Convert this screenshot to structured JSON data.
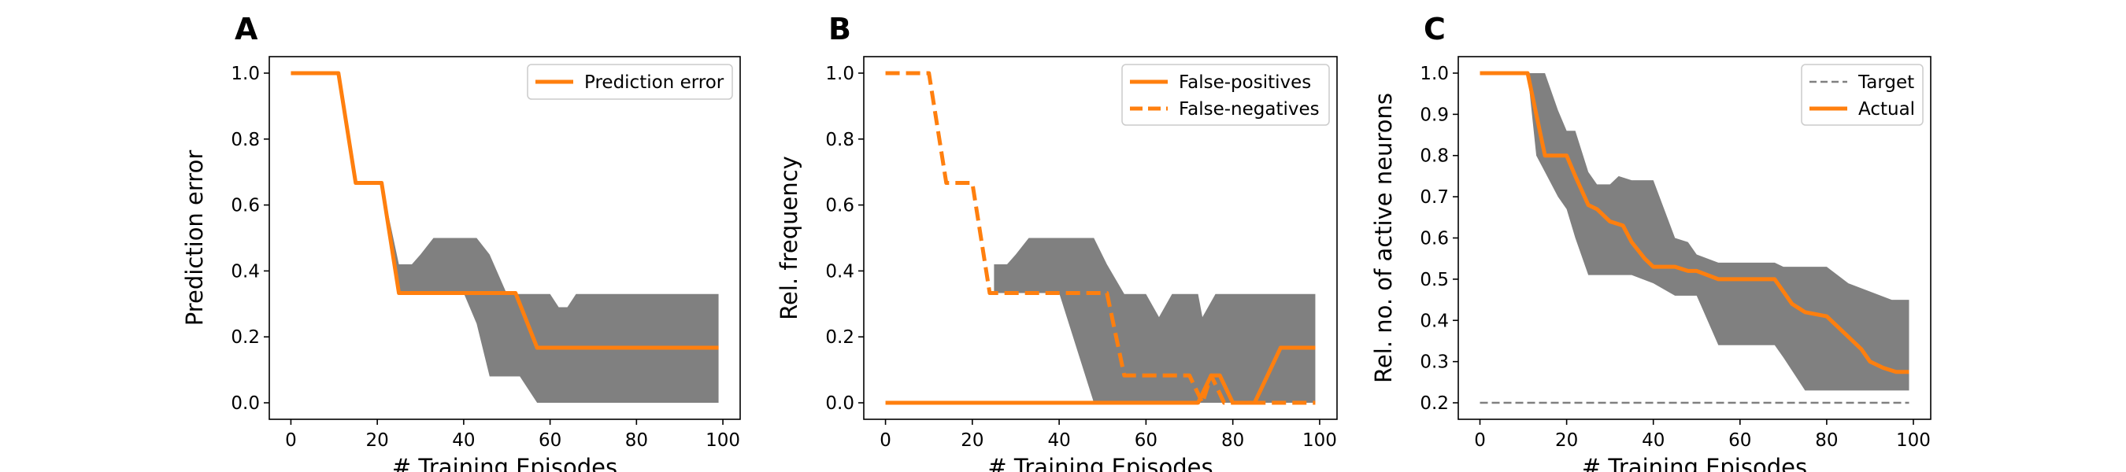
{
  "chart_data": [
    {
      "panel_label": "A",
      "type": "line",
      "xlabel": "# Training Episodes",
      "ylabel": "Prediction error",
      "xlim": [
        -5,
        104
      ],
      "ylim": [
        -0.05,
        1.05
      ],
      "xticks": [
        0,
        20,
        40,
        60,
        80,
        100
      ],
      "yticks": [
        0.0,
        0.2,
        0.4,
        0.6,
        0.8,
        1.0
      ],
      "ytick_labels": [
        "0.0",
        "0.2",
        "0.4",
        "0.6",
        "0.8",
        "1.0"
      ],
      "legend_position": "upper right",
      "bands": [
        {
          "color": "#808080",
          "x": [
            0,
            11,
            15,
            21,
            25,
            28,
            30,
            33,
            35,
            40,
            43,
            46,
            50,
            53,
            57,
            60,
            62,
            64,
            66,
            70,
            80,
            90,
            99
          ],
          "upper": [
            1.0,
            1.0,
            0.667,
            0.667,
            0.42,
            0.42,
            0.45,
            0.5,
            0.5,
            0.5,
            0.5,
            0.45,
            0.33,
            0.33,
            0.33,
            0.33,
            0.29,
            0.29,
            0.33,
            0.33,
            0.33,
            0.33,
            0.33
          ],
          "lower": [
            1.0,
            1.0,
            0.667,
            0.667,
            0.333,
            0.333,
            0.333,
            0.333,
            0.333,
            0.333,
            0.24,
            0.08,
            0.08,
            0.08,
            0.0,
            0.0,
            0.0,
            0.0,
            0.0,
            0.0,
            0.0,
            0.0,
            0.0
          ]
        }
      ],
      "series": [
        {
          "name": "Prediction error",
          "color": "#ff7f0e",
          "style": "solid",
          "x": [
            0,
            11,
            15,
            21,
            25,
            30,
            40,
            52,
            57,
            60,
            70,
            80,
            90,
            99
          ],
          "values": [
            1.0,
            1.0,
            0.667,
            0.667,
            0.333,
            0.333,
            0.333,
            0.333,
            0.167,
            0.167,
            0.167,
            0.167,
            0.167,
            0.167
          ]
        }
      ]
    },
    {
      "panel_label": "B",
      "type": "line",
      "xlabel": "# Training Episodes",
      "ylabel": "Rel. frequency",
      "xlim": [
        -5,
        104
      ],
      "ylim": [
        -0.05,
        1.05
      ],
      "xticks": [
        0,
        20,
        40,
        60,
        80,
        100
      ],
      "yticks": [
        0.0,
        0.2,
        0.4,
        0.6,
        0.8,
        1.0
      ],
      "ytick_labels": [
        "0.0",
        "0.2",
        "0.4",
        "0.6",
        "0.8",
        "1.0"
      ],
      "legend_position": "upper right",
      "bands": [
        {
          "color": "#808080",
          "x": [
            25,
            28,
            30,
            33,
            40,
            48,
            51,
            55,
            60,
            63,
            66,
            70,
            72,
            73,
            76,
            80,
            90,
            99
          ],
          "upper": [
            0.42,
            0.42,
            0.45,
            0.5,
            0.5,
            0.5,
            0.42,
            0.33,
            0.33,
            0.26,
            0.33,
            0.33,
            0.33,
            0.26,
            0.33,
            0.33,
            0.33,
            0.33
          ],
          "lower": [
            0.333,
            0.333,
            0.333,
            0.333,
            0.333,
            0.0,
            0.0,
            0.0,
            0.0,
            0.0,
            0.0,
            0.0,
            0.0,
            0.0,
            0.0,
            0.0,
            0.0,
            0.0
          ]
        }
      ],
      "series": [
        {
          "name": "False-positives",
          "color": "#ff7f0e",
          "style": "solid",
          "x": [
            0,
            20,
            40,
            60,
            70,
            72,
            75,
            77,
            80,
            85,
            88,
            91,
            95,
            99
          ],
          "values": [
            0.0,
            0.0,
            0.0,
            0.0,
            0.0,
            0.0,
            0.083,
            0.083,
            0.0,
            0.0,
            0.083,
            0.167,
            0.167,
            0.167
          ]
        },
        {
          "name": "False-negatives",
          "color": "#ff7f0e",
          "style": "dashed",
          "x": [
            0,
            10,
            14,
            20,
            24,
            30,
            40,
            51,
            55,
            60,
            70,
            73,
            75,
            78,
            85,
            90,
            99
          ],
          "values": [
            1.0,
            1.0,
            0.667,
            0.667,
            0.333,
            0.333,
            0.333,
            0.333,
            0.083,
            0.083,
            0.083,
            0.0,
            0.083,
            0.0,
            0.0,
            0.0,
            0.0
          ]
        }
      ]
    },
    {
      "panel_label": "C",
      "type": "line",
      "xlabel": "# Training Episodes",
      "ylabel": "Rel. no. of active neurons",
      "xlim": [
        -5,
        104
      ],
      "ylim": [
        0.16,
        1.04
      ],
      "xticks": [
        0,
        20,
        40,
        60,
        80,
        100
      ],
      "yticks": [
        0.2,
        0.3,
        0.4,
        0.5,
        0.6,
        0.7,
        0.8,
        0.9,
        1.0
      ],
      "ytick_labels": [
        "0.2",
        "0.3",
        "0.4",
        "0.5",
        "0.6",
        "0.7",
        "0.8",
        "0.9",
        "1.0"
      ],
      "legend_position": "upper right",
      "bands": [
        {
          "color": "#808080",
          "x": [
            0,
            11,
            13,
            15,
            18,
            20,
            22,
            25,
            27,
            30,
            32,
            35,
            40,
            45,
            48,
            50,
            55,
            60,
            65,
            68,
            70,
            75,
            80,
            85,
            90,
            95,
            99
          ],
          "upper": [
            1.0,
            1.0,
            1.0,
            1.0,
            0.91,
            0.86,
            0.86,
            0.76,
            0.73,
            0.73,
            0.75,
            0.74,
            0.74,
            0.6,
            0.59,
            0.56,
            0.54,
            0.54,
            0.54,
            0.54,
            0.53,
            0.53,
            0.53,
            0.49,
            0.47,
            0.45,
            0.45
          ],
          "lower": [
            1.0,
            1.0,
            0.8,
            0.76,
            0.7,
            0.67,
            0.6,
            0.51,
            0.51,
            0.51,
            0.51,
            0.51,
            0.49,
            0.46,
            0.46,
            0.46,
            0.34,
            0.34,
            0.34,
            0.34,
            0.31,
            0.23,
            0.23,
            0.23,
            0.23,
            0.23,
            0.23
          ]
        }
      ],
      "series": [
        {
          "name": "Target",
          "color": "#808080",
          "style": "dashed",
          "x": [
            0,
            99
          ],
          "values": [
            0.2,
            0.2
          ]
        },
        {
          "name": "Actual",
          "color": "#ff7f0e",
          "style": "solid",
          "x": [
            0,
            11,
            15,
            20,
            22,
            25,
            27,
            30,
            33,
            35,
            38,
            40,
            45,
            48,
            50,
            55,
            60,
            65,
            68,
            70,
            72,
            75,
            80,
            85,
            88,
            90,
            93,
            96,
            99
          ],
          "values": [
            1.0,
            1.0,
            0.8,
            0.8,
            0.75,
            0.68,
            0.67,
            0.64,
            0.63,
            0.59,
            0.55,
            0.53,
            0.53,
            0.52,
            0.52,
            0.5,
            0.5,
            0.5,
            0.5,
            0.47,
            0.44,
            0.42,
            0.41,
            0.36,
            0.33,
            0.3,
            0.285,
            0.275,
            0.275
          ]
        }
      ]
    }
  ]
}
